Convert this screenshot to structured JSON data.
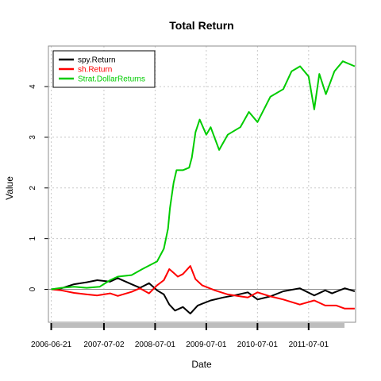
{
  "chart_data": {
    "type": "line",
    "title": "Total Return",
    "xlabel": "Date",
    "ylabel": "Value",
    "x_tick_labels": [
      "2006-06-21",
      "2007-07-02",
      "2008-07-01",
      "2009-07-01",
      "2010-07-01",
      "2011-07-01"
    ],
    "x_ticks": [
      "2006-06-21",
      "2007-07-02",
      "2008-07-01",
      "2009-07-01",
      "2010-07-01",
      "2011-07-01"
    ],
    "xlim": [
      "2006-06-01",
      "2012-05-31"
    ],
    "y_ticks": [
      0,
      1,
      2,
      3,
      4
    ],
    "y_tick_labels": [
      "0",
      "1",
      "2",
      "3",
      "4"
    ],
    "ylim": [
      -0.65,
      4.8
    ],
    "grid": true,
    "legend_position": "top-left",
    "series": [
      {
        "name": "spy.Return",
        "color": "#000000",
        "points": [
          [
            "2006-06-21",
            0.0
          ],
          [
            "2006-09-01",
            0.02
          ],
          [
            "2006-12-01",
            0.1
          ],
          [
            "2007-03-01",
            0.14
          ],
          [
            "2007-05-15",
            0.18
          ],
          [
            "2007-08-15",
            0.15
          ],
          [
            "2007-10-09",
            0.22
          ],
          [
            "2008-01-15",
            0.1
          ],
          [
            "2008-03-15",
            0.03
          ],
          [
            "2008-05-19",
            0.12
          ],
          [
            "2008-07-15",
            -0.02
          ],
          [
            "2008-09-01",
            -0.1
          ],
          [
            "2008-10-10",
            -0.3
          ],
          [
            "2008-11-20",
            -0.42
          ],
          [
            "2009-01-15",
            -0.35
          ],
          [
            "2009-03-09",
            -0.48
          ],
          [
            "2009-05-01",
            -0.32
          ],
          [
            "2009-08-01",
            -0.22
          ],
          [
            "2009-11-01",
            -0.16
          ],
          [
            "2010-01-15",
            -0.12
          ],
          [
            "2010-04-23",
            -0.06
          ],
          [
            "2010-07-02",
            -0.2
          ],
          [
            "2010-10-01",
            -0.14
          ],
          [
            "2011-01-01",
            -0.04
          ],
          [
            "2011-04-29",
            0.02
          ],
          [
            "2011-08-10",
            -0.12
          ],
          [
            "2011-10-27",
            -0.02
          ],
          [
            "2011-12-15",
            -0.08
          ],
          [
            "2012-03-15",
            0.02
          ],
          [
            "2012-05-25",
            -0.04
          ]
        ]
      },
      {
        "name": "sh.Return",
        "color": "#ff0000",
        "points": [
          [
            "2006-06-21",
            0.0
          ],
          [
            "2006-09-01",
            -0.02
          ],
          [
            "2006-12-01",
            -0.07
          ],
          [
            "2007-03-01",
            -0.1
          ],
          [
            "2007-05-15",
            -0.12
          ],
          [
            "2007-08-15",
            -0.08
          ],
          [
            "2007-10-09",
            -0.13
          ],
          [
            "2008-01-15",
            -0.05
          ],
          [
            "2008-03-15",
            0.02
          ],
          [
            "2008-05-19",
            -0.08
          ],
          [
            "2008-07-15",
            0.08
          ],
          [
            "2008-09-01",
            0.18
          ],
          [
            "2008-10-10",
            0.4
          ],
          [
            "2008-11-20",
            0.3
          ],
          [
            "2008-12-10",
            0.25
          ],
          [
            "2009-01-15",
            0.3
          ],
          [
            "2009-03-09",
            0.46
          ],
          [
            "2009-04-15",
            0.2
          ],
          [
            "2009-06-01",
            0.08
          ],
          [
            "2009-09-01",
            -0.02
          ],
          [
            "2009-12-01",
            -0.1
          ],
          [
            "2010-03-01",
            -0.14
          ],
          [
            "2010-04-23",
            -0.16
          ],
          [
            "2010-07-02",
            -0.06
          ],
          [
            "2010-10-01",
            -0.14
          ],
          [
            "2011-01-01",
            -0.2
          ],
          [
            "2011-04-29",
            -0.3
          ],
          [
            "2011-08-10",
            -0.22
          ],
          [
            "2011-10-27",
            -0.32
          ],
          [
            "2012-01-15",
            -0.32
          ],
          [
            "2012-03-15",
            -0.38
          ],
          [
            "2012-05-25",
            -0.38
          ]
        ]
      },
      {
        "name": "Strat.DollarReturns",
        "color": "#00cc00",
        "points": [
          [
            "2006-06-21",
            0.0
          ],
          [
            "2006-09-01",
            0.03
          ],
          [
            "2006-12-01",
            0.05
          ],
          [
            "2007-03-01",
            0.03
          ],
          [
            "2007-06-01",
            0.05
          ],
          [
            "2007-08-15",
            0.18
          ],
          [
            "2007-10-09",
            0.25
          ],
          [
            "2008-01-15",
            0.28
          ],
          [
            "2008-04-01",
            0.4
          ],
          [
            "2008-07-15",
            0.55
          ],
          [
            "2008-09-01",
            0.8
          ],
          [
            "2008-10-01",
            1.2
          ],
          [
            "2008-10-15",
            1.6
          ],
          [
            "2008-11-10",
            2.1
          ],
          [
            "2008-12-01",
            2.35
          ],
          [
            "2009-01-15",
            2.35
          ],
          [
            "2009-03-01",
            2.4
          ],
          [
            "2009-03-20",
            2.6
          ],
          [
            "2009-04-15",
            3.1
          ],
          [
            "2009-05-15",
            3.35
          ],
          [
            "2009-07-01",
            3.05
          ],
          [
            "2009-08-01",
            3.2
          ],
          [
            "2009-10-01",
            2.75
          ],
          [
            "2009-12-01",
            3.05
          ],
          [
            "2010-03-01",
            3.2
          ],
          [
            "2010-05-01",
            3.5
          ],
          [
            "2010-07-01",
            3.3
          ],
          [
            "2010-10-01",
            3.8
          ],
          [
            "2011-01-01",
            3.95
          ],
          [
            "2011-03-01",
            4.3
          ],
          [
            "2011-05-01",
            4.4
          ],
          [
            "2011-07-01",
            4.2
          ],
          [
            "2011-08-10",
            3.55
          ],
          [
            "2011-09-15",
            4.25
          ],
          [
            "2011-11-01",
            3.85
          ],
          [
            "2012-01-01",
            4.3
          ],
          [
            "2012-03-01",
            4.5
          ],
          [
            "2012-05-25",
            4.4
          ]
        ]
      }
    ]
  }
}
